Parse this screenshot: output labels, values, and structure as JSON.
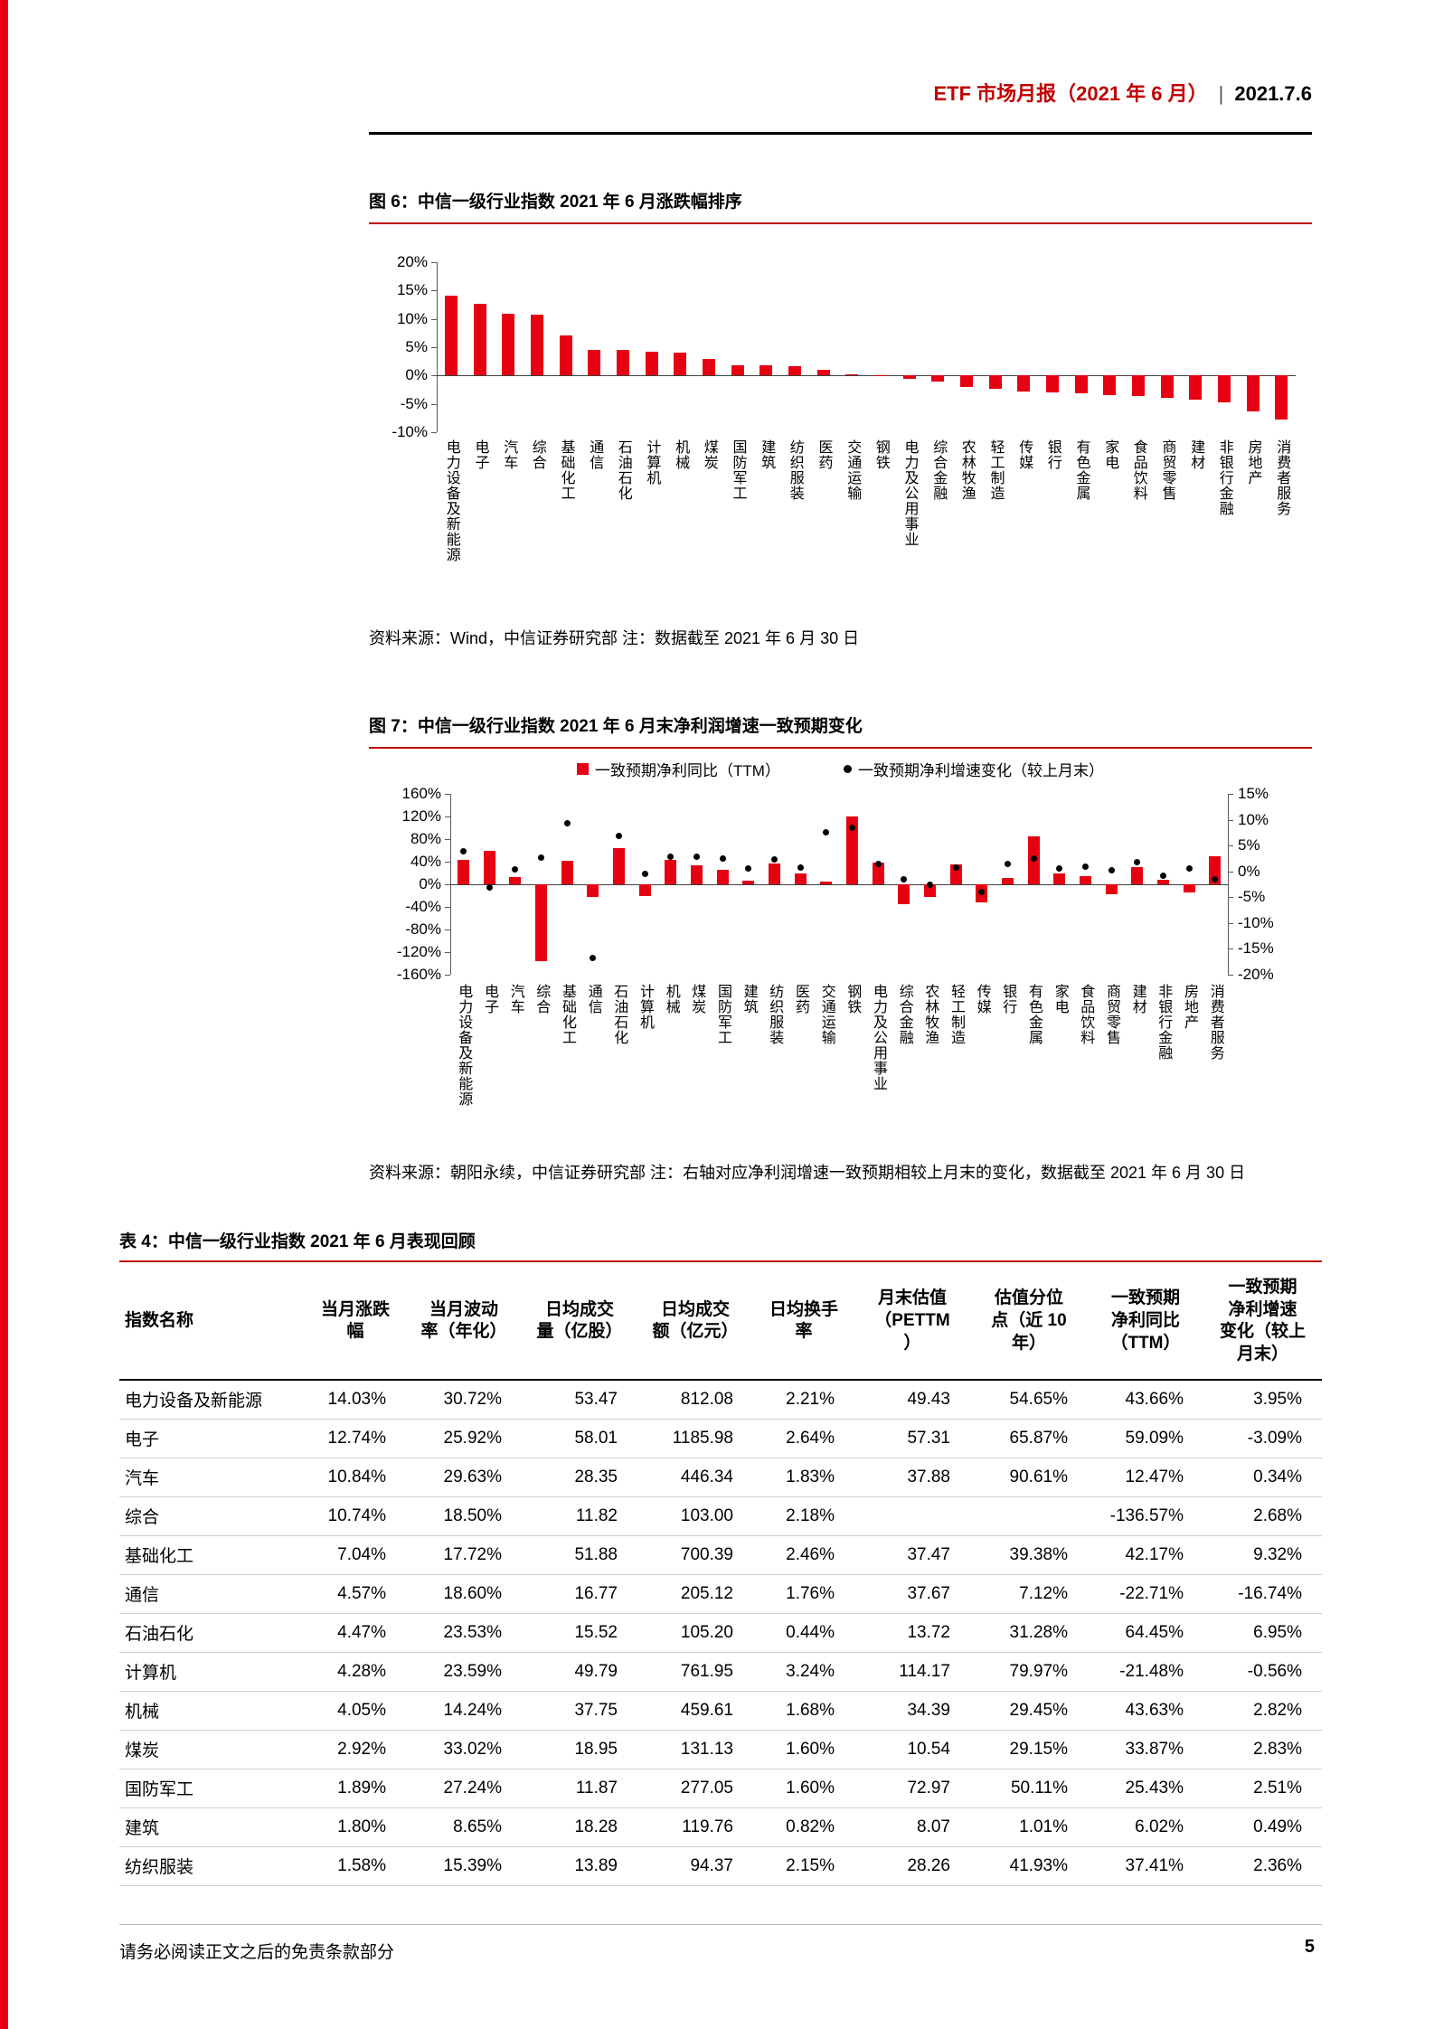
{
  "header": {
    "title": "ETF 市场月报（2021 年 6 月）",
    "separator": "|",
    "date": "2021.7.6"
  },
  "figure6": {
    "title": "图 6：中信一级行业指数 2021 年 6 月涨跌幅排序",
    "source": "资料来源：Wind，中信证券研究部 注：数据截至 2021 年 6 月 30 日"
  },
  "figure7": {
    "title": "图 7：中信一级行业指数 2021 年 6 月末净利润增速一致预期变化",
    "source": "资料来源：朝阳永续，中信证券研究部 注：右轴对应净利润增速一致预期相较上月末的变化，数据截至 2021 年 6 月 30 日"
  },
  "chart_data": [
    {
      "id": "chart6",
      "type": "bar",
      "title": "中信一级行业指数 2021 年 6 月涨跌幅排序",
      "ylim": [
        -10,
        20
      ],
      "yticks": [
        20,
        15,
        10,
        5,
        0,
        -5,
        -10
      ],
      "ytick_labels": [
        "20%",
        "15%",
        "10%",
        "5%",
        "0%",
        "-5%",
        "-10%"
      ],
      "grid": false,
      "legend_position": "none",
      "categories": [
        "电力设备及新能源",
        "电子",
        "汽车",
        "综合",
        "基础化工",
        "通信",
        "石油石化",
        "计算机",
        "机械",
        "煤炭",
        "国防军工",
        "建筑",
        "纺织服装",
        "医药",
        "交通运输",
        "钢铁",
        "电力及公用事业",
        "综合金融",
        "农林牧渔",
        "轻工制造",
        "传媒",
        "银行",
        "有色金属",
        "家电",
        "食品饮料",
        "商贸零售",
        "建材",
        "非银行金融",
        "房地产",
        "消费者服务"
      ],
      "values": [
        14.03,
        12.74,
        10.84,
        10.74,
        7.04,
        4.57,
        4.47,
        4.28,
        4.05,
        2.92,
        1.89,
        1.8,
        1.58,
        1.05,
        0.3,
        0.1,
        -0.55,
        -1.0,
        -2.0,
        -2.4,
        -2.8,
        -3.0,
        -3.2,
        -3.4,
        -3.7,
        -3.9,
        -4.3,
        -4.8,
        -6.3,
        -7.8
      ]
    },
    {
      "id": "chart7",
      "type": "bar+scatter",
      "title": "中信一级行业指数 2021 年 6 月末净利润增速一致预期变化",
      "left_ylim": [
        -160,
        160
      ],
      "right_ylim": [
        -20,
        15
      ],
      "left_yticks": [
        160,
        120,
        80,
        40,
        0,
        -40,
        -80,
        -120,
        -160
      ],
      "left_ytick_labels": [
        "160%",
        "120%",
        "80%",
        "40%",
        "0%",
        "-40%",
        "-80%",
        "-120%",
        "-160%"
      ],
      "right_yticks": [
        15,
        10,
        5,
        0,
        -5,
        -10,
        -15,
        -20
      ],
      "right_ytick_labels": [
        "15%",
        "10%",
        "5%",
        "0%",
        "-5%",
        "-10%",
        "-15%",
        "-20%"
      ],
      "grid": false,
      "legend_position": "top",
      "categories": [
        "电力设备及新能源",
        "电子",
        "汽车",
        "综合",
        "基础化工",
        "通信",
        "石油石化",
        "计算机",
        "机械",
        "煤炭",
        "国防军工",
        "建筑",
        "纺织服装",
        "医药",
        "交通运输",
        "钢铁",
        "电力及公用事业",
        "综合金融",
        "农林牧渔",
        "轻工制造",
        "传媒",
        "银行",
        "有色金属",
        "家电",
        "食品饮料",
        "商贸零售",
        "建材",
        "非银行金融",
        "房地产",
        "消费者服务"
      ],
      "series": [
        {
          "name": "一致预期净利同比（TTM）",
          "type": "bar",
          "axis": "left",
          "values": [
            43.66,
            59.09,
            12.47,
            -136.57,
            42.17,
            -22.71,
            64.45,
            -21.48,
            43.63,
            33.87,
            25.43,
            6.02,
            37.41,
            20.0,
            5.0,
            120.0,
            38.0,
            -35.0,
            -22.0,
            36.0,
            -32.0,
            12.0,
            85.0,
            20.0,
            14.0,
            -18.0,
            30.0,
            8.0,
            -14.0,
            50.0
          ]
        },
        {
          "name": "一致预期净利增速变化（较上月末）",
          "type": "scatter",
          "axis": "right",
          "values": [
            3.95,
            -3.09,
            0.34,
            2.68,
            9.32,
            -16.74,
            6.95,
            -0.56,
            2.82,
            2.83,
            2.51,
            0.49,
            2.36,
            0.8,
            7.5,
            8.5,
            1.5,
            -1.5,
            -2.5,
            0.8,
            -4.0,
            1.5,
            2.5,
            0.5,
            1.0,
            0.3,
            1.8,
            -0.8,
            0.5,
            -1.5
          ]
        }
      ]
    }
  ],
  "table4": {
    "title": "表 4：中信一级行业指数 2021 年 6 月表现回顾",
    "headers": [
      "指数名称",
      "当月涨跌\n幅",
      "当月波动\n率（年化）",
      "日均成交\n量（亿股）",
      "日均成交\n额（亿元）",
      "日均换手\n率",
      "月末估值\n（PETTM\n）",
      "估值分位\n点（近 10\n年）",
      "一致预期\n净利同比\n（TTM）",
      "一致预期\n净利增速\n变化（较上\n月末）"
    ],
    "rows": [
      [
        "电力设备及新能源",
        "14.03%",
        "30.72%",
        "53.47",
        "812.08",
        "2.21%",
        "49.43",
        "54.65%",
        "43.66%",
        "3.95%"
      ],
      [
        "电子",
        "12.74%",
        "25.92%",
        "58.01",
        "1185.98",
        "2.64%",
        "57.31",
        "65.87%",
        "59.09%",
        "-3.09%"
      ],
      [
        "汽车",
        "10.84%",
        "29.63%",
        "28.35",
        "446.34",
        "1.83%",
        "37.88",
        "90.61%",
        "12.47%",
        "0.34%"
      ],
      [
        "综合",
        "10.74%",
        "18.50%",
        "11.82",
        "103.00",
        "2.18%",
        "",
        "",
        "-136.57%",
        "2.68%"
      ],
      [
        "基础化工",
        "7.04%",
        "17.72%",
        "51.88",
        "700.39",
        "2.46%",
        "37.47",
        "39.38%",
        "42.17%",
        "9.32%"
      ],
      [
        "通信",
        "4.57%",
        "18.60%",
        "16.77",
        "205.12",
        "1.76%",
        "37.67",
        "7.12%",
        "-22.71%",
        "-16.74%"
      ],
      [
        "石油石化",
        "4.47%",
        "23.53%",
        "15.52",
        "105.20",
        "0.44%",
        "13.72",
        "31.28%",
        "64.45%",
        "6.95%"
      ],
      [
        "计算机",
        "4.28%",
        "23.59%",
        "49.79",
        "761.95",
        "3.24%",
        "114.17",
        "79.97%",
        "-21.48%",
        "-0.56%"
      ],
      [
        "机械",
        "4.05%",
        "14.24%",
        "37.75",
        "459.61",
        "1.68%",
        "34.39",
        "29.45%",
        "43.63%",
        "2.82%"
      ],
      [
        "煤炭",
        "2.92%",
        "33.02%",
        "18.95",
        "131.13",
        "1.60%",
        "10.54",
        "29.15%",
        "33.87%",
        "2.83%"
      ],
      [
        "国防军工",
        "1.89%",
        "27.24%",
        "11.87",
        "277.05",
        "1.60%",
        "72.97",
        "50.11%",
        "25.43%",
        "2.51%"
      ],
      [
        "建筑",
        "1.80%",
        "8.65%",
        "18.28",
        "119.76",
        "0.82%",
        "8.07",
        "1.01%",
        "6.02%",
        "0.49%"
      ],
      [
        "纺织服装",
        "1.58%",
        "15.39%",
        "13.89",
        "94.37",
        "2.15%",
        "28.26",
        "41.93%",
        "37.41%",
        "2.36%"
      ]
    ]
  },
  "footer": {
    "disclaimer": "请务必阅读正文之后的免责条款部分",
    "page_number": "5"
  },
  "colors": {
    "accent_red": "#C00000",
    "bar_red": "#E60012",
    "dot_black": "#000000"
  }
}
